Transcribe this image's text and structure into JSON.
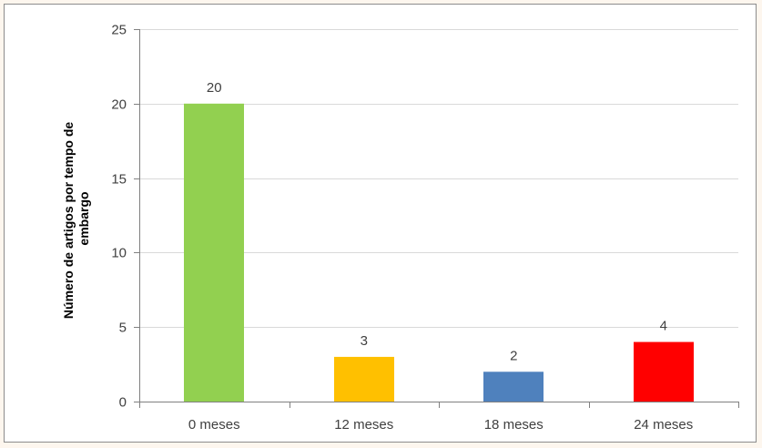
{
  "chart_data": {
    "type": "bar",
    "title": "",
    "xlabel": "",
    "ylabel": "Número de artigos por tempo de embargo",
    "ylabel_lines": [
      "Número de artigos por tempo de",
      "embargo"
    ],
    "categories": [
      "0 meses",
      "12 meses",
      "18 meses",
      "24 meses"
    ],
    "values": [
      20,
      3,
      2,
      4
    ],
    "bar_colors": [
      "#92d050",
      "#ffc000",
      "#4f81bd",
      "#ff0000"
    ],
    "ylim": [
      0,
      25
    ],
    "yticks": [
      0,
      5,
      10,
      15,
      20,
      25
    ],
    "grid": true,
    "legend": "none",
    "data_labels": true
  }
}
